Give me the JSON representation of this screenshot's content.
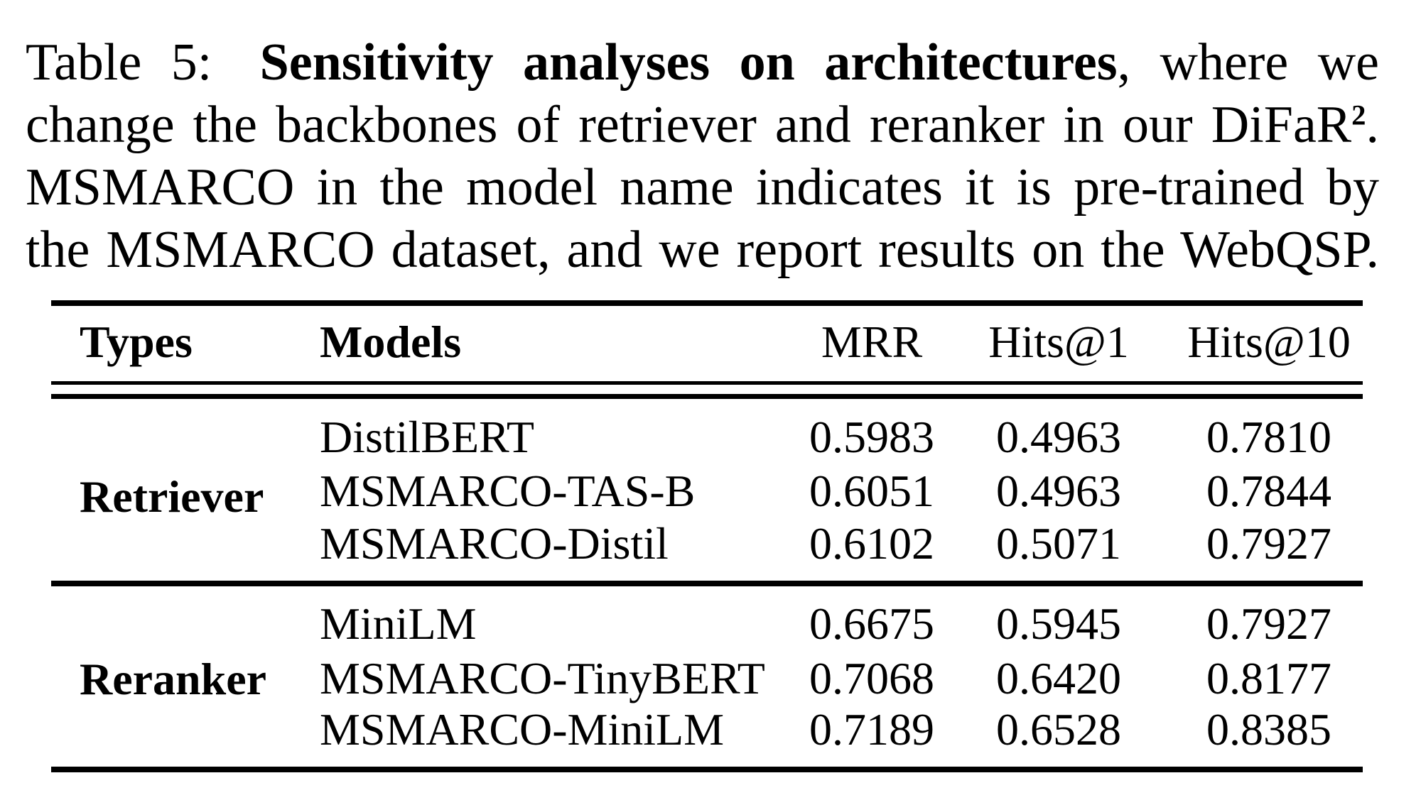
{
  "caption": {
    "label": "Table 5:",
    "title_bold": "Sensitivity analyses on architectures",
    "line1_rest": ", where we",
    "line2_pre": "change the backbones of retriever and reranker in our DiFaR",
    "line2_sup": "2",
    "line2_end": ".",
    "line3": "MSMARCO in the model name indicates it is pre-trained by",
    "line4": "the MSMARCO dataset, and we report results on the WebQSP."
  },
  "table": {
    "headers": {
      "types": "Types",
      "models": "Models",
      "mrr": "MRR",
      "hits1": "Hits@1",
      "hits10": "Hits@10"
    },
    "groups": [
      {
        "type": "Retriever",
        "rows": [
          {
            "model": "DistilBERT",
            "mrr": "0.5983",
            "hits1": "0.4963",
            "hits10": "0.7810"
          },
          {
            "model": "MSMARCO-TAS-B",
            "mrr": "0.6051",
            "hits1": "0.4963",
            "hits10": "0.7844"
          },
          {
            "model": "MSMARCO-Distil",
            "mrr": "0.6102",
            "hits1": "0.5071",
            "hits10": "0.7927"
          }
        ]
      },
      {
        "type": "Reranker",
        "rows": [
          {
            "model": "MiniLM",
            "mrr": "0.6675",
            "hits1": "0.5945",
            "hits10": "0.7927"
          },
          {
            "model": "MSMARCO-TinyBERT",
            "mrr": "0.7068",
            "hits1": "0.6420",
            "hits10": "0.8177"
          },
          {
            "model": "MSMARCO-MiniLM",
            "mrr": "0.7189",
            "hits1": "0.6528",
            "hits10": "0.8385"
          }
        ]
      }
    ]
  },
  "colors": {
    "text": "#000000",
    "background": "#ffffff",
    "rule": "#000000"
  }
}
